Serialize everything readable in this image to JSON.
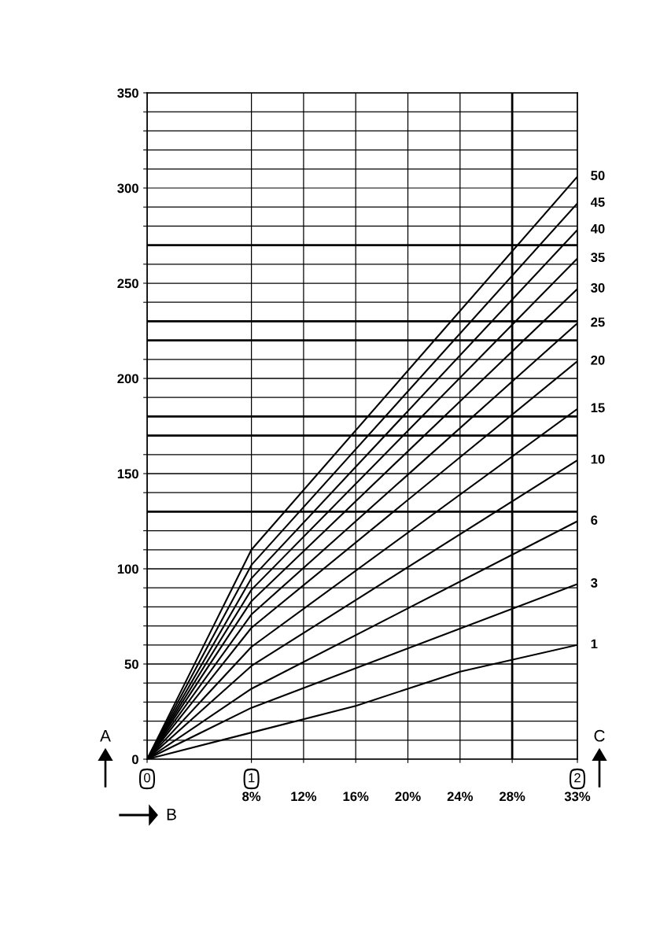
{
  "chart_data": {
    "type": "line",
    "xlabel": "B",
    "ylabel": "A",
    "y2label": "C",
    "xlim": [
      0,
      33
    ],
    "ylim": [
      0,
      350
    ],
    "xticks": [
      {
        "value": 0,
        "label": null
      },
      {
        "value": 8,
        "label": "8%"
      },
      {
        "value": 12,
        "label": "12%"
      },
      {
        "value": 16,
        "label": "16%"
      },
      {
        "value": 20,
        "label": "20%"
      },
      {
        "value": 24,
        "label": "24%"
      },
      {
        "value": 28,
        "label": "28%"
      },
      {
        "value": 33,
        "label": "33%"
      }
    ],
    "yticks": [
      0,
      {
        "value": 10,
        "label": null
      },
      {
        "value": 20,
        "label": null
      },
      {
        "value": 30,
        "label": null
      },
      {
        "value": 40,
        "label": null
      },
      50,
      {
        "value": 60,
        "label": null
      },
      {
        "value": 70,
        "label": null
      },
      {
        "value": 80,
        "label": null
      },
      {
        "value": 90,
        "label": null
      },
      100,
      {
        "value": 110,
        "label": null
      },
      {
        "value": 120,
        "label": null
      },
      {
        "value": 140,
        "label": null
      },
      150,
      {
        "value": 160,
        "label": null
      },
      {
        "value": 190,
        "label": null
      },
      200,
      {
        "value": 210,
        "label": null
      },
      {
        "value": 240,
        "label": null
      },
      250,
      {
        "value": 260,
        "label": null
      },
      {
        "value": 280,
        "label": null
      },
      {
        "value": 290,
        "label": null
      },
      300,
      {
        "value": 310,
        "label": null
      },
      {
        "value": 320,
        "label": null
      },
      {
        "value": 330,
        "label": null
      },
      {
        "value": 340,
        "label": null
      },
      350
    ],
    "grid": true,
    "marker": "none",
    "line_style": "solid",
    "ref_lines": [
      {
        "axis": "y",
        "value": 130
      },
      {
        "axis": "y",
        "value": 170
      },
      {
        "axis": "y",
        "value": 180
      },
      {
        "axis": "y",
        "value": 220
      },
      {
        "axis": "y",
        "value": 230
      },
      {
        "axis": "y",
        "value": 270
      },
      {
        "axis": "x",
        "value": 28
      }
    ],
    "annotations": [
      "0",
      "1",
      "2"
    ],
    "series": [
      {
        "name": "1",
        "color": "#000000",
        "x": [
          0,
          8,
          16,
          24,
          33
        ],
        "values": [
          0,
          14,
          28,
          46,
          60
        ]
      },
      {
        "name": "3",
        "color": "#000000",
        "x": [
          0,
          8,
          33
        ],
        "values": [
          0,
          27,
          92
        ]
      },
      {
        "name": "6",
        "color": "#000000",
        "x": [
          0,
          8,
          33
        ],
        "values": [
          0,
          37,
          125
        ]
      },
      {
        "name": "10",
        "color": "#000000",
        "x": [
          0,
          8,
          33
        ],
        "values": [
          0,
          49,
          157
        ]
      },
      {
        "name": "15",
        "color": "#000000",
        "x": [
          0,
          8,
          33
        ],
        "values": [
          0,
          59,
          184
        ]
      },
      {
        "name": "20",
        "color": "#000000",
        "x": [
          0,
          8,
          33
        ],
        "values": [
          0,
          69,
          209
        ]
      },
      {
        "name": "25",
        "color": "#000000",
        "x": [
          0,
          8,
          33
        ],
        "values": [
          0,
          76,
          229
        ]
      },
      {
        "name": "30",
        "color": "#000000",
        "x": [
          0,
          8,
          33
        ],
        "values": [
          0,
          83,
          247
        ]
      },
      {
        "name": "35",
        "color": "#000000",
        "x": [
          0,
          8,
          33
        ],
        "values": [
          0,
          89,
          263
        ]
      },
      {
        "name": "40",
        "color": "#000000",
        "x": [
          0,
          8,
          33
        ],
        "values": [
          0,
          95,
          278
        ]
      },
      {
        "name": "45",
        "color": "#000000",
        "x": [
          0,
          8,
          33
        ],
        "values": [
          0,
          102,
          292
        ]
      },
      {
        "name": "50",
        "color": "#000000",
        "x": [
          0,
          8,
          33
        ],
        "values": [
          0,
          110,
          306
        ]
      }
    ]
  }
}
